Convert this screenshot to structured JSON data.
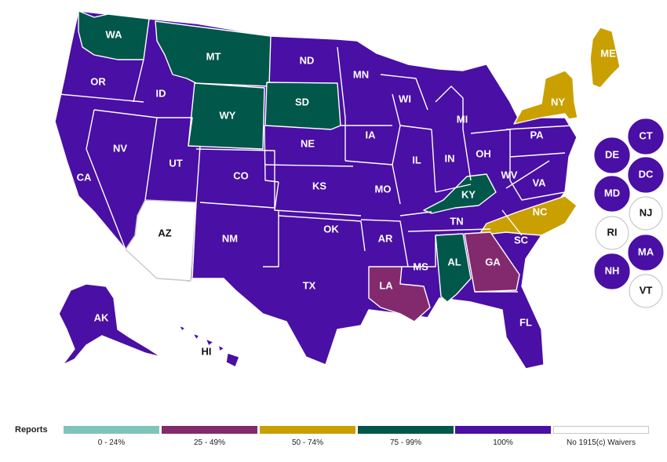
{
  "colors": {
    "p0_24": "#7ec4b8",
    "p25_49": "#832a6f",
    "p50_74": "#c9a000",
    "p75_99": "#00574a",
    "p100": "#4a0fa4",
    "none": "#ffffff",
    "border": "#c8c8c8"
  },
  "states": {
    "WA": "WA",
    "OR": "OR",
    "CA": "CA",
    "NV": "NV",
    "ID": "ID",
    "MT": "MT",
    "WY": "WY",
    "UT": "UT",
    "AZ": "AZ",
    "CO": "CO",
    "NM": "NM",
    "ND": "ND",
    "SD": "SD",
    "NE": "NE",
    "KS": "KS",
    "OK": "OK",
    "TX": "TX",
    "MN": "MN",
    "IA": "IA",
    "MO": "MO",
    "AR": "AR",
    "LA": "LA",
    "WI": "WI",
    "IL": "IL",
    "MS": "MS",
    "MI": "MI",
    "IN": "IN",
    "KY": "KY",
    "TN": "TN",
    "AL": "AL",
    "OH": "OH",
    "WV": "WV",
    "VA": "VA",
    "NC": "NC",
    "SC": "SC",
    "GA": "GA",
    "FL": "FL",
    "PA": "PA",
    "NY": "NY",
    "ME": "ME",
    "AK": "AK",
    "HI": "HI",
    "DE": "DE",
    "CT": "CT",
    "DC": "DC",
    "MD": "MD",
    "NJ": "NJ",
    "RI": "RI",
    "MA": "MA",
    "NH": "NH",
    "VT": "VT"
  },
  "legend": {
    "title": "Reports",
    "items": [
      {
        "label": "0 - 24%",
        "color": "#7ec4b8"
      },
      {
        "label": "25 - 49%",
        "color": "#832a6f"
      },
      {
        "label": "50 - 74%",
        "color": "#c9a000"
      },
      {
        "label": "75 - 99%",
        "color": "#00574a"
      },
      {
        "label": "100%",
        "color": "#4a0fa4"
      },
      {
        "label": "No 1915(c) Waivers",
        "color": "#ffffff"
      }
    ]
  }
}
